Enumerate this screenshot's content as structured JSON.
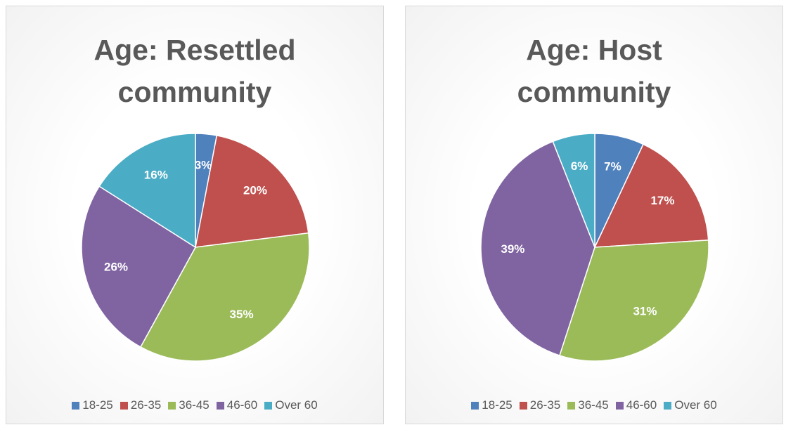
{
  "chart_data": [
    {
      "type": "pie",
      "title": "Age: Resettled community",
      "categories": [
        "18-25",
        "26-35",
        "36-45",
        "46-60",
        "Over 60"
      ],
      "values": [
        3,
        20,
        35,
        26,
        16
      ],
      "value_labels": [
        "3%",
        "20%",
        "35%",
        "26%",
        "16%"
      ],
      "colors": [
        "#4f81bd",
        "#c0504d",
        "#9bbb59",
        "#8064a2",
        "#4bacc6"
      ]
    },
    {
      "type": "pie",
      "title": "Age: Host community",
      "categories": [
        "18-25",
        "26-35",
        "36-45",
        "46-60",
        "Over 60"
      ],
      "values": [
        7,
        17,
        31,
        39,
        6
      ],
      "value_labels": [
        "7%",
        "17%",
        "31%",
        "39%",
        "6%"
      ],
      "colors": [
        "#4f81bd",
        "#c0504d",
        "#9bbb59",
        "#8064a2",
        "#4bacc6"
      ]
    }
  ]
}
